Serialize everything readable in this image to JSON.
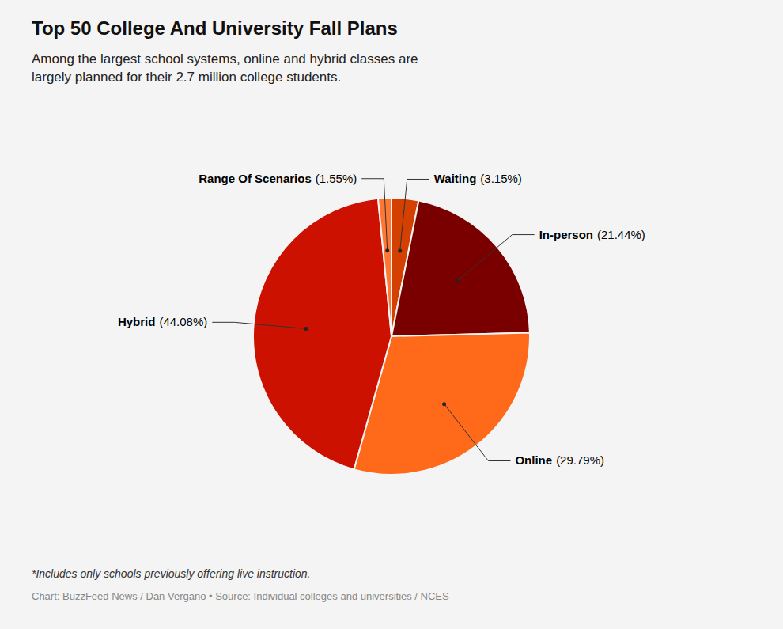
{
  "chart_data": {
    "type": "pie",
    "title": "Top 50 College And University Fall Plans",
    "subtitle": "Among the largest school systems, online and hybrid classes are\nlargely planned for their 2.7 million college students.",
    "categories": [
      "Waiting",
      "In-person",
      "Online",
      "Hybrid",
      "Range Of Scenarios"
    ],
    "values": [
      3.15,
      21.44,
      29.79,
      44.08,
      1.55
    ],
    "value_labels": [
      "(3.15%)",
      "(21.44%)",
      "(29.79%)",
      "(44.08%)",
      "(1.55%)"
    ],
    "data_labels": true,
    "colors": [
      "#d44000",
      "#7a0000",
      "#ff6a1a",
      "#cc1100",
      "#ff7733"
    ],
    "annotations": [
      "*Includes only schools previously offering live instruction.",
      "Chart: BuzzFeed News / Dan Vergano • Source: Individual colleges and universities / NCES"
    ]
  }
}
